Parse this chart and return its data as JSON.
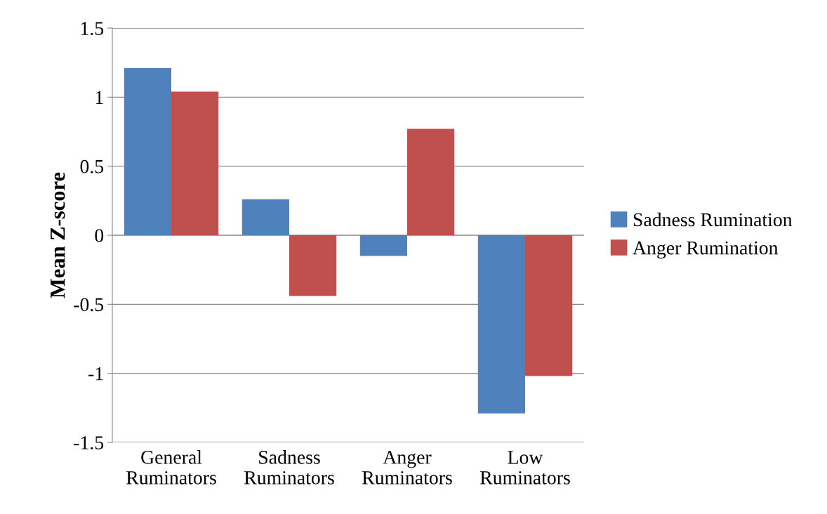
{
  "chart_data": {
    "type": "bar",
    "ylabel": "Mean Z-score",
    "categories": [
      "General\nRuminators",
      "Sadness\nRuminators",
      "Anger\nRuminators",
      "Low\nRuminators"
    ],
    "series": [
      {
        "name": "Sadness Rumination",
        "color": "#4f81bd",
        "values": [
          1.21,
          0.26,
          -0.15,
          -1.29
        ]
      },
      {
        "name": "Anger Rumination",
        "color": "#c0504d",
        "values": [
          1.04,
          -0.44,
          0.77,
          -1.02
        ]
      }
    ],
    "ylim": [
      -1.5,
      1.5
    ],
    "yticks": [
      {
        "value": -1.5,
        "label": "-1.5"
      },
      {
        "value": -1,
        "label": "-1"
      },
      {
        "value": -0.5,
        "label": "-0.5"
      },
      0,
      0.5,
      1,
      1.5
    ],
    "grid": "y",
    "legend": "right"
  }
}
